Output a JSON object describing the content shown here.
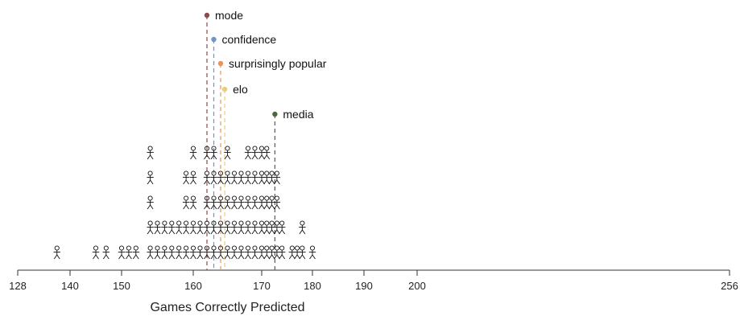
{
  "chart_data": {
    "type": "scatter",
    "description_style": "unit/dot plot of participant icons",
    "xlabel": "Games Correctly Predicted",
    "xlim": [
      128,
      256
    ],
    "xticks": [
      128,
      140,
      150,
      160,
      170,
      180,
      190,
      200,
      256
    ],
    "participants": [
      {
        "x": 137,
        "count": 1
      },
      {
        "x": 145,
        "count": 1
      },
      {
        "x": 147,
        "count": 1
      },
      {
        "x": 150,
        "count": 1
      },
      {
        "x": 151,
        "count": 1
      },
      {
        "x": 152,
        "count": 1
      },
      {
        "x": 154,
        "count": 5
      },
      {
        "x": 155,
        "count": 2
      },
      {
        "x": 156,
        "count": 2
      },
      {
        "x": 157,
        "count": 2
      },
      {
        "x": 158,
        "count": 2
      },
      {
        "x": 159,
        "count": 4
      },
      {
        "x": 160,
        "count": 5
      },
      {
        "x": 161,
        "count": 2
      },
      {
        "x": 162,
        "count": 5
      },
      {
        "x": 163,
        "count": 5
      },
      {
        "x": 164,
        "count": 4
      },
      {
        "x": 165,
        "count": 5
      },
      {
        "x": 166,
        "count": 4
      },
      {
        "x": 167,
        "count": 4
      },
      {
        "x": 168,
        "count": 5
      },
      {
        "x": 169,
        "count": 5
      },
      {
        "x": 170,
        "count": 5
      },
      {
        "x": 171,
        "count": 5
      },
      {
        "x": 172,
        "count": 4
      },
      {
        "x": 173,
        "count": 4
      },
      {
        "x": 174,
        "count": 2
      },
      {
        "x": 176,
        "count": 1
      },
      {
        "x": 177,
        "count": 1
      },
      {
        "x": 178,
        "count": 2
      },
      {
        "x": 180,
        "count": 1
      }
    ],
    "methods": [
      {
        "name": "mode",
        "value": 162.0,
        "color": "#8e4a4a"
      },
      {
        "name": "confidence",
        "value": 163.0,
        "color": "#6f97c4"
      },
      {
        "name": "surprisingly popular",
        "value": 164.0,
        "color": "#e8935a"
      },
      {
        "name": "elo",
        "value": 164.6,
        "color": "#e9cc7c"
      },
      {
        "name": "media",
        "value": 172.6,
        "color": "#4a6a35"
      }
    ]
  }
}
